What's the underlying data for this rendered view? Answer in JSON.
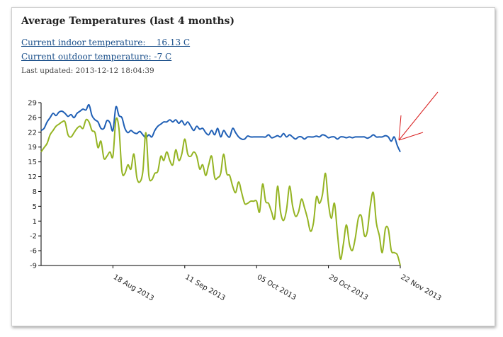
{
  "widget": {
    "title": "Average Temperatures (last 4 months)",
    "indoor_link": "Current indoor temperature:    16.13 C",
    "outdoor_link": "Current outdoor temperature: -7 C",
    "last_updated": "Last updated: 2013-12-12 18:04:39"
  },
  "chart_data": {
    "type": "line",
    "title": "",
    "xlabel": "",
    "ylabel": "",
    "x_start": "2013-07-25",
    "x_end": "2013-11-22",
    "xlim": [
      "2013-07-25",
      "2013-11-22"
    ],
    "ylim": [
      -9,
      29
    ],
    "y_ticks": [
      "29",
      "26",
      "22",
      "19",
      "15",
      "12",
      "8",
      "5",
      "1",
      "-2",
      "-6",
      "-9"
    ],
    "x_ticks": [
      {
        "date": "2013-08-18",
        "label": "18 Aug 2013"
      },
      {
        "date": "2013-09-11",
        "label": "11 Sep 2013"
      },
      {
        "date": "2013-10-05",
        "label": "05 Oct 2013"
      },
      {
        "date": "2013-10-29",
        "label": "29 Oct 2013"
      },
      {
        "date": "2013-11-22",
        "label": "22 Nov 2013"
      }
    ],
    "grid": false,
    "legend": "none",
    "series": [
      {
        "color": "#1f5fb5",
        "points": [
          [
            "2013-07-25",
            22.5
          ],
          [
            "2013-07-26",
            23.0
          ],
          [
            "2013-07-27",
            24.5
          ],
          [
            "2013-07-28",
            25.5
          ],
          [
            "2013-07-29",
            26.5
          ],
          [
            "2013-07-30",
            26.0
          ],
          [
            "2013-07-31",
            26.8
          ],
          [
            "2013-08-01",
            27.0
          ],
          [
            "2013-08-02",
            26.5
          ],
          [
            "2013-08-03",
            25.8
          ],
          [
            "2013-08-04",
            26.2
          ],
          [
            "2013-08-05",
            25.5
          ],
          [
            "2013-08-06",
            26.5
          ],
          [
            "2013-08-07",
            27.0
          ],
          [
            "2013-08-08",
            27.5
          ],
          [
            "2013-08-09",
            27.3
          ],
          [
            "2013-08-10",
            28.5
          ],
          [
            "2013-08-11",
            26.0
          ],
          [
            "2013-08-12",
            25.0
          ],
          [
            "2013-08-13",
            24.5
          ],
          [
            "2013-08-14",
            23.0
          ],
          [
            "2013-08-15",
            23.0
          ],
          [
            "2013-08-16",
            24.8
          ],
          [
            "2013-08-17",
            24.3
          ],
          [
            "2013-08-18",
            22.5
          ],
          [
            "2013-08-19",
            28.0
          ],
          [
            "2013-08-20",
            26.0
          ],
          [
            "2013-08-21",
            25.5
          ],
          [
            "2013-08-22",
            23.0
          ],
          [
            "2013-08-23",
            22.0
          ],
          [
            "2013-08-24",
            22.5
          ],
          [
            "2013-08-25",
            22.0
          ],
          [
            "2013-08-26",
            21.8
          ],
          [
            "2013-08-27",
            22.3
          ],
          [
            "2013-08-28",
            21.5
          ],
          [
            "2013-08-29",
            20.8
          ],
          [
            "2013-08-30",
            21.5
          ],
          [
            "2013-08-31",
            21.0
          ],
          [
            "2013-09-01",
            22.5
          ],
          [
            "2013-09-02",
            23.5
          ],
          [
            "2013-09-03",
            24.0
          ],
          [
            "2013-09-04",
            24.5
          ],
          [
            "2013-09-05",
            24.5
          ],
          [
            "2013-09-06",
            25.0
          ],
          [
            "2013-09-07",
            24.5
          ],
          [
            "2013-09-08",
            25.0
          ],
          [
            "2013-09-09",
            24.2
          ],
          [
            "2013-09-10",
            24.8
          ],
          [
            "2013-09-11",
            23.8
          ],
          [
            "2013-09-12",
            24.5
          ],
          [
            "2013-09-13",
            23.5
          ],
          [
            "2013-09-14",
            22.5
          ],
          [
            "2013-09-15",
            23.5
          ],
          [
            "2013-09-16",
            22.8
          ],
          [
            "2013-09-17",
            23.0
          ],
          [
            "2013-09-18",
            22.0
          ],
          [
            "2013-09-19",
            21.5
          ],
          [
            "2013-09-20",
            22.5
          ],
          [
            "2013-09-21",
            21.5
          ],
          [
            "2013-09-22",
            23.0
          ],
          [
            "2013-09-23",
            21.0
          ],
          [
            "2013-09-24",
            22.5
          ],
          [
            "2013-09-25",
            21.5
          ],
          [
            "2013-09-26",
            21.0
          ],
          [
            "2013-09-27",
            23.0
          ],
          [
            "2013-09-28",
            22.0
          ],
          [
            "2013-09-29",
            21.0
          ],
          [
            "2013-09-30",
            20.5
          ],
          [
            "2013-10-01",
            20.5
          ],
          [
            "2013-10-02",
            21.2
          ],
          [
            "2013-10-03",
            21.0
          ],
          [
            "2013-10-04",
            21.0
          ],
          [
            "2013-10-05",
            21.0
          ],
          [
            "2013-10-06",
            21.0
          ],
          [
            "2013-10-07",
            21.0
          ],
          [
            "2013-10-08",
            21.0
          ],
          [
            "2013-10-09",
            21.5
          ],
          [
            "2013-10-10",
            20.8
          ],
          [
            "2013-10-11",
            21.0
          ],
          [
            "2013-10-12",
            21.3
          ],
          [
            "2013-10-13",
            21.0
          ],
          [
            "2013-10-14",
            21.8
          ],
          [
            "2013-10-15",
            21.0
          ],
          [
            "2013-10-16",
            21.5
          ],
          [
            "2013-10-17",
            21.0
          ],
          [
            "2013-10-18",
            20.5
          ],
          [
            "2013-10-19",
            21.0
          ],
          [
            "2013-10-20",
            21.0
          ],
          [
            "2013-10-21",
            20.5
          ],
          [
            "2013-10-22",
            21.0
          ],
          [
            "2013-10-23",
            21.0
          ],
          [
            "2013-10-24",
            21.0
          ],
          [
            "2013-10-25",
            21.2
          ],
          [
            "2013-10-26",
            21.0
          ],
          [
            "2013-10-27",
            21.5
          ],
          [
            "2013-10-28",
            21.3
          ],
          [
            "2013-10-29",
            20.8
          ],
          [
            "2013-10-30",
            21.0
          ],
          [
            "2013-10-31",
            21.0
          ],
          [
            "2013-11-01",
            20.5
          ],
          [
            "2013-11-02",
            21.0
          ],
          [
            "2013-11-03",
            21.0
          ],
          [
            "2013-11-04",
            20.8
          ],
          [
            "2013-11-05",
            21.0
          ],
          [
            "2013-11-06",
            20.8
          ],
          [
            "2013-11-07",
            21.0
          ],
          [
            "2013-11-08",
            21.0
          ],
          [
            "2013-11-09",
            21.0
          ],
          [
            "2013-11-10",
            21.0
          ],
          [
            "2013-11-11",
            20.7
          ],
          [
            "2013-11-12",
            21.0
          ],
          [
            "2013-11-13",
            21.5
          ],
          [
            "2013-11-14",
            21.0
          ],
          [
            "2013-11-15",
            21.0
          ],
          [
            "2013-11-16",
            21.0
          ],
          [
            "2013-11-17",
            21.3
          ],
          [
            "2013-11-18",
            21.0
          ],
          [
            "2013-11-19",
            20.0
          ],
          [
            "2013-11-20",
            21.0
          ],
          [
            "2013-11-21",
            19.0
          ],
          [
            "2013-11-22",
            17.5
          ]
        ]
      },
      {
        "color": "#95b423",
        "points": [
          [
            "2013-07-25",
            17.5
          ],
          [
            "2013-07-26",
            18.5
          ],
          [
            "2013-07-27",
            19.5
          ],
          [
            "2013-07-28",
            21.5
          ],
          [
            "2013-07-29",
            22.5
          ],
          [
            "2013-07-30",
            23.5
          ],
          [
            "2013-07-31",
            24.0
          ],
          [
            "2013-08-01",
            24.5
          ],
          [
            "2013-08-02",
            24.5
          ],
          [
            "2013-08-03",
            21.5
          ],
          [
            "2013-08-04",
            21.0
          ],
          [
            "2013-08-05",
            22.0
          ],
          [
            "2013-08-06",
            23.0
          ],
          [
            "2013-08-07",
            23.5
          ],
          [
            "2013-08-08",
            23.0
          ],
          [
            "2013-08-09",
            25.0
          ],
          [
            "2013-08-10",
            24.5
          ],
          [
            "2013-08-11",
            22.5
          ],
          [
            "2013-08-12",
            22.0
          ],
          [
            "2013-08-13",
            18.5
          ],
          [
            "2013-08-14",
            20.0
          ],
          [
            "2013-08-15",
            16.0
          ],
          [
            "2013-08-16",
            16.5
          ],
          [
            "2013-08-17",
            17.5
          ],
          [
            "2013-08-18",
            16.5
          ],
          [
            "2013-08-19",
            25.0
          ],
          [
            "2013-08-20",
            23.0
          ],
          [
            "2013-08-21",
            13.0
          ],
          [
            "2013-08-22",
            12.5
          ],
          [
            "2013-08-23",
            14.5
          ],
          [
            "2013-08-24",
            13.5
          ],
          [
            "2013-08-25",
            17.0
          ],
          [
            "2013-08-26",
            11.5
          ],
          [
            "2013-08-27",
            10.5
          ],
          [
            "2013-08-28",
            13.0
          ],
          [
            "2013-08-29",
            22.0
          ],
          [
            "2013-08-30",
            12.0
          ],
          [
            "2013-08-31",
            11.0
          ],
          [
            "2013-09-01",
            12.5
          ],
          [
            "2013-09-02",
            13.0
          ],
          [
            "2013-09-03",
            16.5
          ],
          [
            "2013-09-04",
            15.5
          ],
          [
            "2013-09-05",
            17.5
          ],
          [
            "2013-09-06",
            15.5
          ],
          [
            "2013-09-07",
            14.5
          ],
          [
            "2013-09-08",
            18.0
          ],
          [
            "2013-09-09",
            15.5
          ],
          [
            "2013-09-10",
            17.0
          ],
          [
            "2013-09-11",
            20.5
          ],
          [
            "2013-09-12",
            17.0
          ],
          [
            "2013-09-13",
            16.5
          ],
          [
            "2013-09-14",
            17.5
          ],
          [
            "2013-09-15",
            16.5
          ],
          [
            "2013-09-16",
            13.5
          ],
          [
            "2013-09-17",
            14.5
          ],
          [
            "2013-09-18",
            12.0
          ],
          [
            "2013-09-19",
            14.5
          ],
          [
            "2013-09-20",
            16.5
          ],
          [
            "2013-09-21",
            11.5
          ],
          [
            "2013-09-22",
            11.5
          ],
          [
            "2013-09-23",
            12.5
          ],
          [
            "2013-09-24",
            17.0
          ],
          [
            "2013-09-25",
            12.5
          ],
          [
            "2013-09-26",
            12.0
          ],
          [
            "2013-09-27",
            9.5
          ],
          [
            "2013-09-28",
            8.0
          ],
          [
            "2013-09-29",
            10.5
          ],
          [
            "2013-09-30",
            8.0
          ],
          [
            "2013-10-01",
            5.5
          ],
          [
            "2013-10-02",
            5.5
          ],
          [
            "2013-10-03",
            6.0
          ],
          [
            "2013-10-04",
            6.0
          ],
          [
            "2013-10-05",
            6.0
          ],
          [
            "2013-10-06",
            3.5
          ],
          [
            "2013-10-07",
            10.0
          ],
          [
            "2013-10-08",
            6.0
          ],
          [
            "2013-10-09",
            5.5
          ],
          [
            "2013-10-10",
            3.5
          ],
          [
            "2013-10-11",
            2.0
          ],
          [
            "2013-10-12",
            9.5
          ],
          [
            "2013-10-13",
            3.5
          ],
          [
            "2013-10-14",
            1.5
          ],
          [
            "2013-10-15",
            4.0
          ],
          [
            "2013-10-16",
            9.5
          ],
          [
            "2013-10-17",
            5.0
          ],
          [
            "2013-10-18",
            2.5
          ],
          [
            "2013-10-19",
            3.5
          ],
          [
            "2013-10-20",
            6.5
          ],
          [
            "2013-10-21",
            4.5
          ],
          [
            "2013-10-22",
            2.0
          ],
          [
            "2013-10-23",
            -1.0
          ],
          [
            "2013-10-24",
            1.0
          ],
          [
            "2013-10-25",
            7.0
          ],
          [
            "2013-10-26",
            5.5
          ],
          [
            "2013-10-27",
            7.5
          ],
          [
            "2013-10-28",
            12.5
          ],
          [
            "2013-10-29",
            5.5
          ],
          [
            "2013-10-30",
            2.0
          ],
          [
            "2013-10-31",
            5.5
          ],
          [
            "2013-11-01",
            -1.5
          ],
          [
            "2013-11-02",
            -7.5
          ],
          [
            "2013-11-03",
            -4.0
          ],
          [
            "2013-11-04",
            0.5
          ],
          [
            "2013-11-05",
            -4.0
          ],
          [
            "2013-11-06",
            -5.5
          ],
          [
            "2013-11-07",
            -2.5
          ],
          [
            "2013-11-08",
            2.0
          ],
          [
            "2013-11-09",
            2.5
          ],
          [
            "2013-11-10",
            -2.0
          ],
          [
            "2013-11-11",
            -1.0
          ],
          [
            "2013-11-12",
            5.0
          ],
          [
            "2013-11-13",
            8.0
          ],
          [
            "2013-11-14",
            1.0
          ],
          [
            "2013-11-15",
            -2.0
          ],
          [
            "2013-11-16",
            -6.0
          ],
          [
            "2013-11-17",
            -0.5
          ],
          [
            "2013-11-18",
            -0.5
          ],
          [
            "2013-11-19",
            -5.5
          ],
          [
            "2013-11-20",
            -6.0
          ],
          [
            "2013-11-21",
            -6.5
          ],
          [
            "2013-11-22",
            -9.0
          ]
        ]
      }
    ]
  }
}
